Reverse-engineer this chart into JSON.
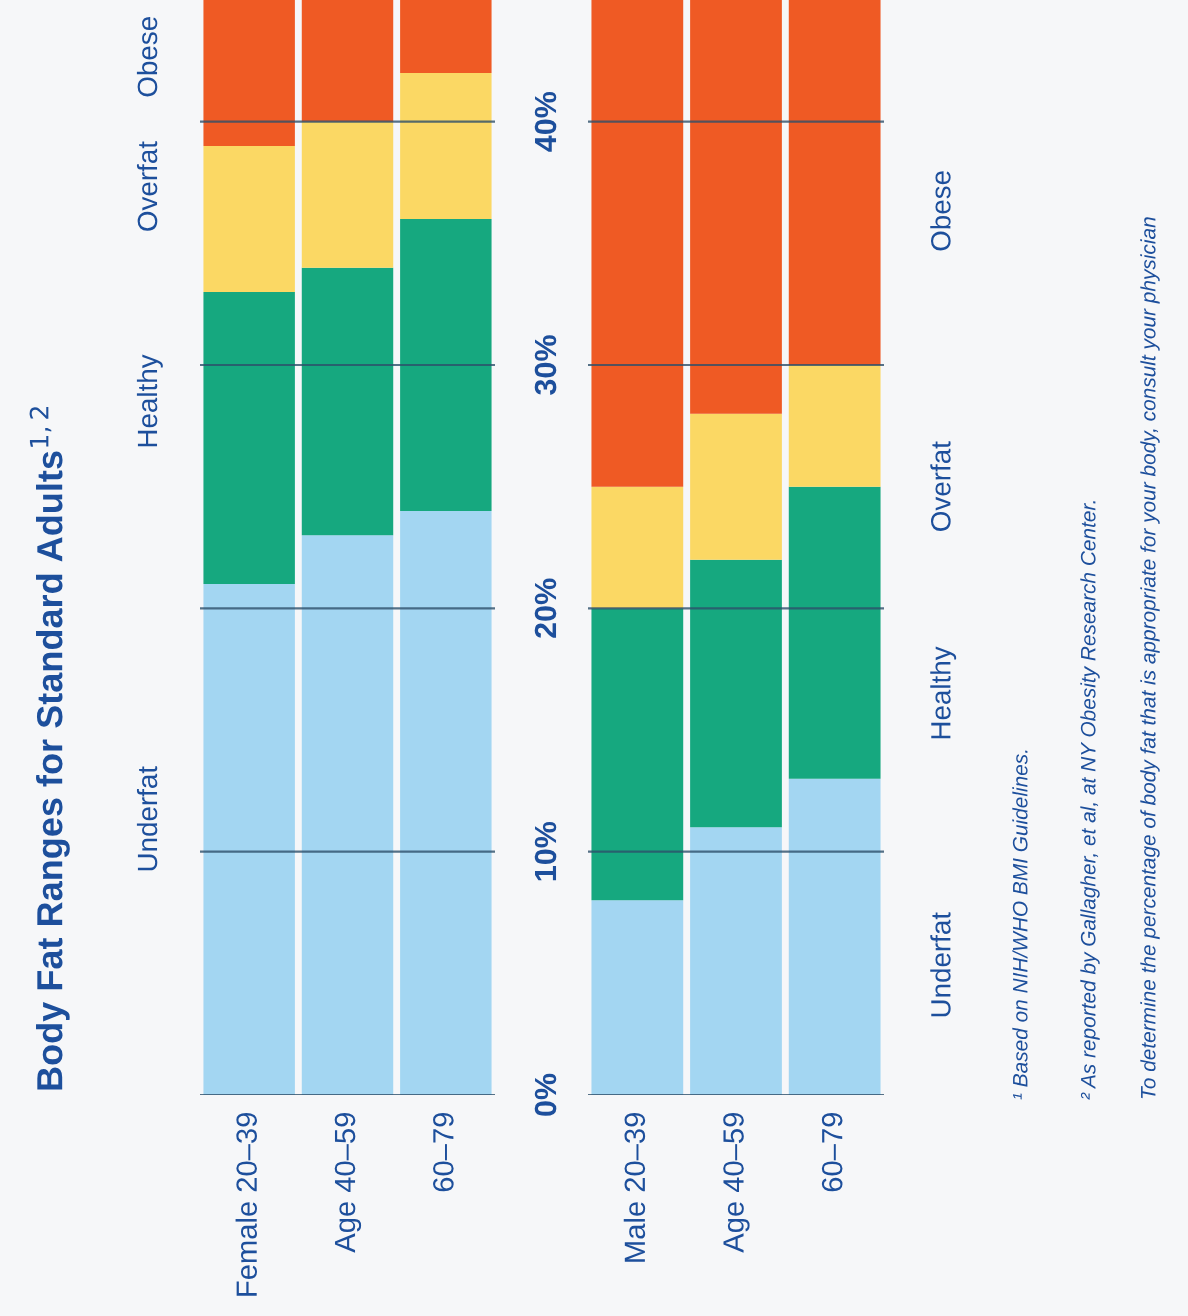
{
  "chart_data": [
    {
      "type": "bar",
      "stacked": true,
      "title": "Body Fat Ranges for Standard Adults$^{1,2}$",
      "categories": [
        "Female 20–39",
        "Age 40–59",
        "60–79"
      ],
      "series": [
        {
          "name": "Underfat",
          "color": "#a3d6f2",
          "values": [
            21,
            23,
            24
          ]
        },
        {
          "name": "Healthy",
          "color": "#16a87f",
          "values": [
            12,
            11,
            12
          ]
        },
        {
          "name": "Overfat",
          "color": "#fbd864",
          "values": [
            6,
            6,
            6
          ]
        },
        {
          "name": "Obese",
          "color": "#ef5a24",
          "values": [
            6,
            5,
            3
          ]
        }
      ],
      "ylim": [
        0,
        45
      ],
      "yticks": [
        {
          "value": 0,
          "label": "0%"
        },
        {
          "value": 10,
          "label": "10%"
        },
        {
          "value": 20,
          "label": "20%"
        },
        {
          "value": 30,
          "label": "30%"
        },
        {
          "value": 40,
          "label": "40%"
        }
      ],
      "grid": "y",
      "legend": false
    },
    {
      "type": "bar",
      "stacked": true,
      "categories": [
        "Male 20–39",
        "Age 40–59",
        "60–79"
      ],
      "series": [
        {
          "name": "Underfat",
          "color": "#a3d6f2",
          "values": [
            8,
            11,
            13
          ]
        },
        {
          "name": "Healthy",
          "color": "#16a87f",
          "values": [
            12,
            11,
            12
          ]
        },
        {
          "name": "Overfat",
          "color": "#fbd864",
          "values": [
            5,
            6,
            5
          ]
        },
        {
          "name": "Obese",
          "color": "#ef5a24",
          "values": [
            20,
            17,
            15
          ]
        }
      ],
      "ylim": [
        0,
        45
      ],
      "grid": "y",
      "legend": false,
      "tick_labels": "x",
      "yticks": [
        {
          "value": 0,
          "label": null
        },
        {
          "value": 10,
          "label": null
        },
        {
          "value": 20,
          "label": null
        },
        {
          "value": 30,
          "label": null
        },
        {
          "value": 40,
          "label": null
        }
      ],
      "annotations": [
        "¹ Based on NIH/WHO BMI Guidelines.",
        "² As reported by Gallagher, et al, at NY Obesity Research Center.",
        "To determine the percentage of body fat that is appropriate for your body, consult your physician"
      ]
    }
  ]
}
